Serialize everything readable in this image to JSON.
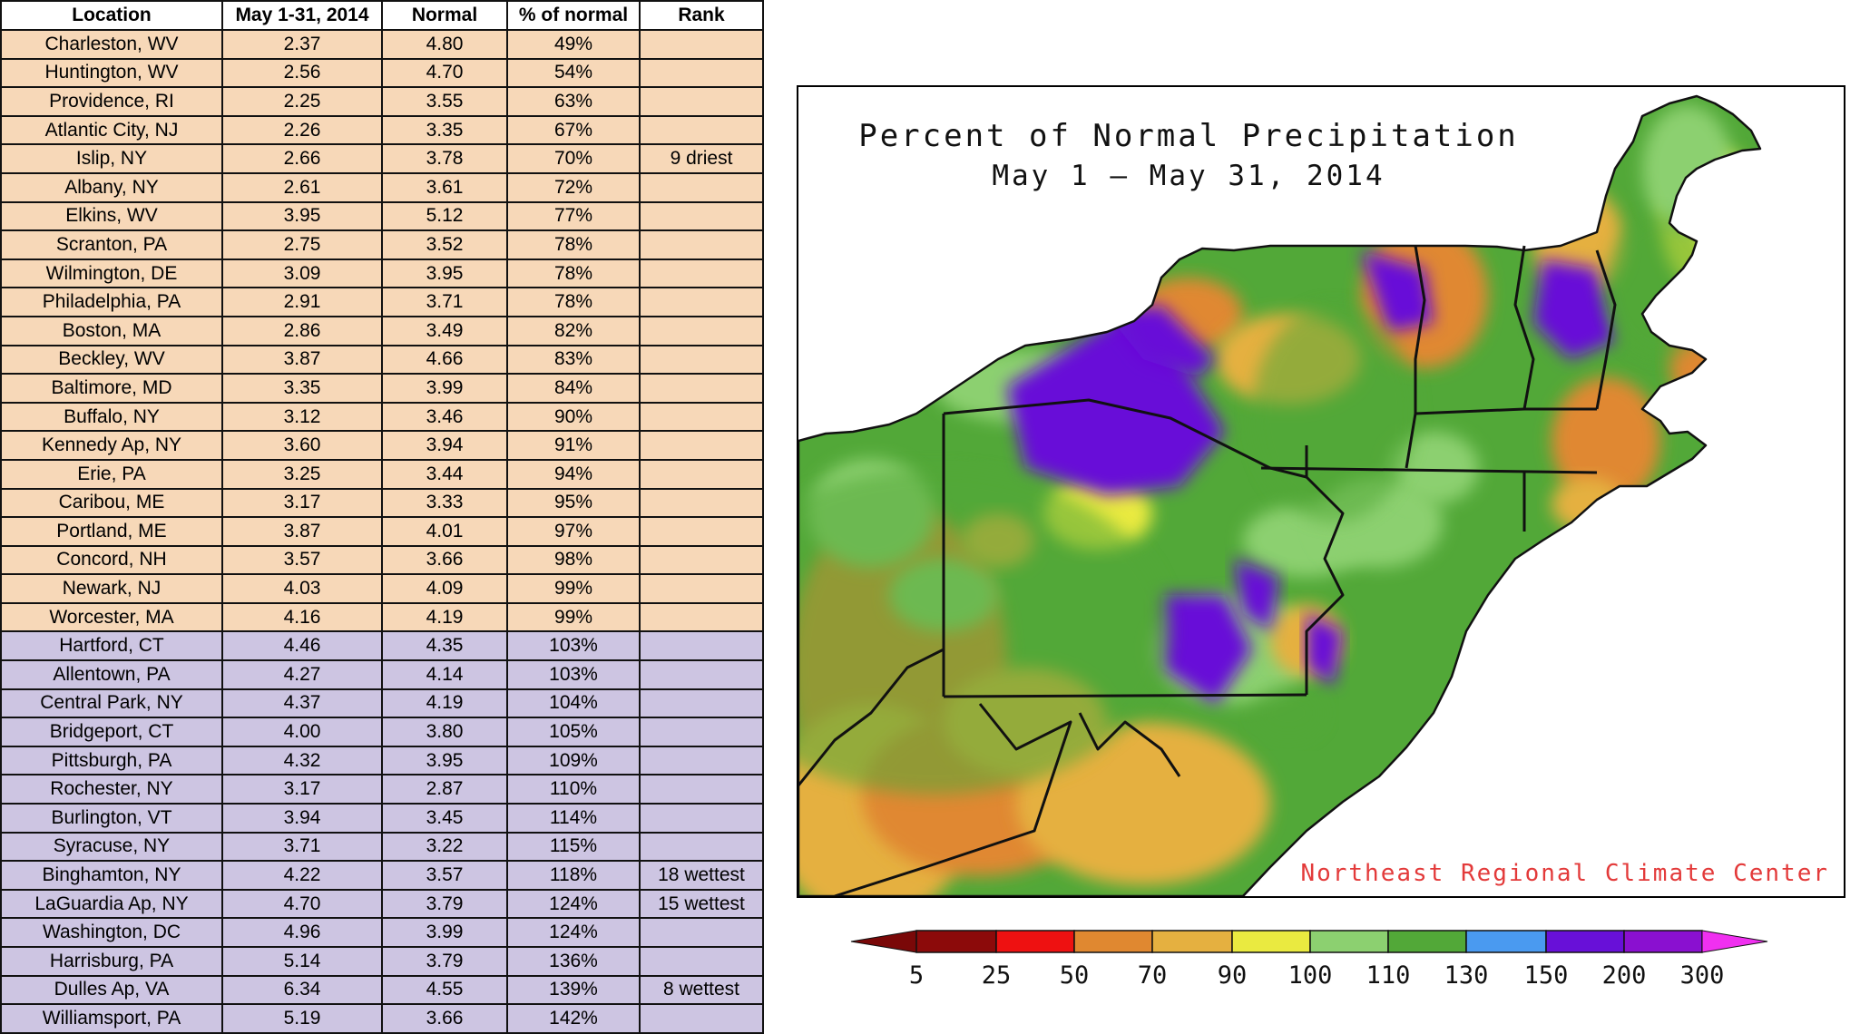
{
  "table": {
    "headers": [
      "Location",
      "May 1-31, 2014",
      "Normal",
      "% of normal",
      "Rank"
    ],
    "rows": [
      {
        "location": "Charleston, WV",
        "observed": "2.37",
        "normal": "4.80",
        "pct": "49%",
        "rank": "",
        "group": "dry"
      },
      {
        "location": "Huntington, WV",
        "observed": "2.56",
        "normal": "4.70",
        "pct": "54%",
        "rank": "",
        "group": "dry"
      },
      {
        "location": "Providence, RI",
        "observed": "2.25",
        "normal": "3.55",
        "pct": "63%",
        "rank": "",
        "group": "dry"
      },
      {
        "location": "Atlantic City, NJ",
        "observed": "2.26",
        "normal": "3.35",
        "pct": "67%",
        "rank": "",
        "group": "dry"
      },
      {
        "location": "Islip, NY",
        "observed": "2.66",
        "normal": "3.78",
        "pct": "70%",
        "rank": "9 driest",
        "group": "dry"
      },
      {
        "location": "Albany, NY",
        "observed": "2.61",
        "normal": "3.61",
        "pct": "72%",
        "rank": "",
        "group": "dry"
      },
      {
        "location": "Elkins, WV",
        "observed": "3.95",
        "normal": "5.12",
        "pct": "77%",
        "rank": "",
        "group": "dry"
      },
      {
        "location": "Scranton, PA",
        "observed": "2.75",
        "normal": "3.52",
        "pct": "78%",
        "rank": "",
        "group": "dry"
      },
      {
        "location": "Wilmington, DE",
        "observed": "3.09",
        "normal": "3.95",
        "pct": "78%",
        "rank": "",
        "group": "dry"
      },
      {
        "location": "Philadelphia, PA",
        "observed": "2.91",
        "normal": "3.71",
        "pct": "78%",
        "rank": "",
        "group": "dry"
      },
      {
        "location": "Boston, MA",
        "observed": "2.86",
        "normal": "3.49",
        "pct": "82%",
        "rank": "",
        "group": "dry"
      },
      {
        "location": "Beckley, WV",
        "observed": "3.87",
        "normal": "4.66",
        "pct": "83%",
        "rank": "",
        "group": "dry"
      },
      {
        "location": "Baltimore, MD",
        "observed": "3.35",
        "normal": "3.99",
        "pct": "84%",
        "rank": "",
        "group": "dry"
      },
      {
        "location": "Buffalo, NY",
        "observed": "3.12",
        "normal": "3.46",
        "pct": "90%",
        "rank": "",
        "group": "dry"
      },
      {
        "location": "Kennedy Ap, NY",
        "observed": "3.60",
        "normal": "3.94",
        "pct": "91%",
        "rank": "",
        "group": "dry"
      },
      {
        "location": "Erie, PA",
        "observed": "3.25",
        "normal": "3.44",
        "pct": "94%",
        "rank": "",
        "group": "dry"
      },
      {
        "location": "Caribou, ME",
        "observed": "3.17",
        "normal": "3.33",
        "pct": "95%",
        "rank": "",
        "group": "dry"
      },
      {
        "location": "Portland, ME",
        "observed": "3.87",
        "normal": "4.01",
        "pct": "97%",
        "rank": "",
        "group": "dry"
      },
      {
        "location": "Concord, NH",
        "observed": "3.57",
        "normal": "3.66",
        "pct": "98%",
        "rank": "",
        "group": "dry"
      },
      {
        "location": "Newark, NJ",
        "observed": "4.03",
        "normal": "4.09",
        "pct": "99%",
        "rank": "",
        "group": "dry"
      },
      {
        "location": "Worcester, MA",
        "observed": "4.16",
        "normal": "4.19",
        "pct": "99%",
        "rank": "",
        "group": "dry"
      },
      {
        "location": "Hartford, CT",
        "observed": "4.46",
        "normal": "4.35",
        "pct": "103%",
        "rank": "",
        "group": "wet"
      },
      {
        "location": "Allentown, PA",
        "observed": "4.27",
        "normal": "4.14",
        "pct": "103%",
        "rank": "",
        "group": "wet"
      },
      {
        "location": "Central Park, NY",
        "observed": "4.37",
        "normal": "4.19",
        "pct": "104%",
        "rank": "",
        "group": "wet"
      },
      {
        "location": "Bridgeport, CT",
        "observed": "4.00",
        "normal": "3.80",
        "pct": "105%",
        "rank": "",
        "group": "wet"
      },
      {
        "location": "Pittsburgh, PA",
        "observed": "4.32",
        "normal": "3.95",
        "pct": "109%",
        "rank": "",
        "group": "wet"
      },
      {
        "location": "Rochester, NY",
        "observed": "3.17",
        "normal": "2.87",
        "pct": "110%",
        "rank": "",
        "group": "wet"
      },
      {
        "location": "Burlington, VT",
        "observed": "3.94",
        "normal": "3.45",
        "pct": "114%",
        "rank": "",
        "group": "wet"
      },
      {
        "location": "Syracuse, NY",
        "observed": "3.71",
        "normal": "3.22",
        "pct": "115%",
        "rank": "",
        "group": "wet"
      },
      {
        "location": "Binghamton, NY",
        "observed": "4.22",
        "normal": "3.57",
        "pct": "118%",
        "rank": "18 wettest",
        "group": "wet"
      },
      {
        "location": "LaGuardia Ap, NY",
        "observed": "4.70",
        "normal": "3.79",
        "pct": "124%",
        "rank": "15 wettest",
        "group": "wet"
      },
      {
        "location": "Washington, DC",
        "observed": "4.96",
        "normal": "3.99",
        "pct": "124%",
        "rank": "",
        "group": "wet"
      },
      {
        "location": "Harrisburg, PA",
        "observed": "5.14",
        "normal": "3.79",
        "pct": "136%",
        "rank": "",
        "group": "wet"
      },
      {
        "location": "Dulles Ap, VA",
        "observed": "6.34",
        "normal": "4.55",
        "pct": "139%",
        "rank": "8 wettest",
        "group": "wet"
      },
      {
        "location": "Williamsport, PA",
        "observed": "5.19",
        "normal": "3.66",
        "pct": "142%",
        "rank": "",
        "group": "wet"
      }
    ]
  },
  "map": {
    "title_line1": "Percent of Normal Precipitation",
    "title_line2": "May 1 — May 31, 2014",
    "credit": "Northeast Regional Climate Center"
  },
  "legend": {
    "labels": [
      "5",
      "25",
      "50",
      "70",
      "90",
      "100",
      "110",
      "130",
      "150",
      "200",
      "300"
    ],
    "colors": [
      "#8c0a0a",
      "#ee1111",
      "#e08830",
      "#e5b040",
      "#eaea40",
      "#8cd070",
      "#52a838",
      "#4a9af0",
      "#6810d8",
      "#8a10d0"
    ],
    "low_arrow_color": "#7a0808",
    "high_arrow_color": "#f030f0"
  },
  "colors": {
    "dry_row": "#f7d8b8",
    "wet_row": "#cdc5e2",
    "water": "#ffffff",
    "border": "#111111"
  }
}
